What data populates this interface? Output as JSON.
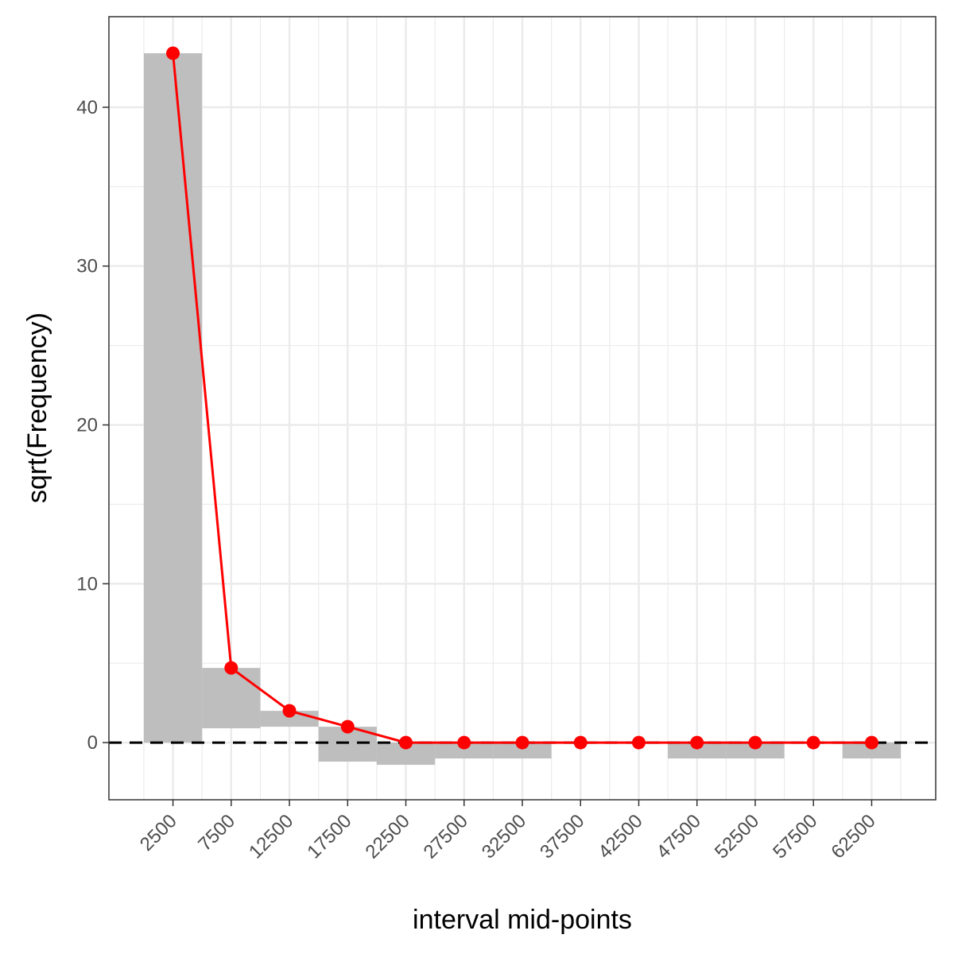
{
  "chart_data": {
    "type": "bar",
    "xlabel": "interval mid-points",
    "ylabel": "sqrt(Frequency)",
    "categories": [
      "2500",
      "7500",
      "12500",
      "17500",
      "22500",
      "27500",
      "32500",
      "37500",
      "42500",
      "47500",
      "52500",
      "57500",
      "62500"
    ],
    "x": [
      2500,
      7500,
      12500,
      17500,
      22500,
      27500,
      32500,
      37500,
      42500,
      47500,
      52500,
      57500,
      62500
    ],
    "yticks": [
      0,
      10,
      20,
      30,
      40
    ],
    "ylim": [
      -3.6,
      45.7
    ],
    "xlim": [
      -3000,
      68000
    ],
    "bin_width": 5000,
    "grid": true,
    "reference_line": {
      "y": 0,
      "style": "dashed",
      "color": "#000000"
    },
    "series": [
      {
        "kind": "hanging-bars",
        "color": "#bebebe",
        "bars": [
          {
            "x": 2500,
            "bottom": 0.0,
            "top": 43.4
          },
          {
            "x": 7500,
            "bottom": 0.9,
            "top": 4.7
          },
          {
            "x": 12500,
            "bottom": 1.0,
            "top": 2.0
          },
          {
            "x": 17500,
            "bottom": -1.2,
            "top": 1.0
          },
          {
            "x": 22500,
            "bottom": -1.4,
            "top": 0.0
          },
          {
            "x": 27500,
            "bottom": -1.0,
            "top": 0.0
          },
          {
            "x": 32500,
            "bottom": -1.0,
            "top": 0.0
          },
          {
            "x": 47500,
            "bottom": -1.0,
            "top": 0.0
          },
          {
            "x": 52500,
            "bottom": -1.0,
            "top": 0.0
          },
          {
            "x": 62500,
            "bottom": -1.0,
            "top": 0.0
          }
        ]
      },
      {
        "kind": "line-points",
        "color": "#ff0000",
        "values": [
          43.4,
          4.7,
          2.0,
          1.0,
          0,
          0,
          0,
          0,
          0,
          0,
          0,
          0,
          0
        ]
      }
    ]
  }
}
